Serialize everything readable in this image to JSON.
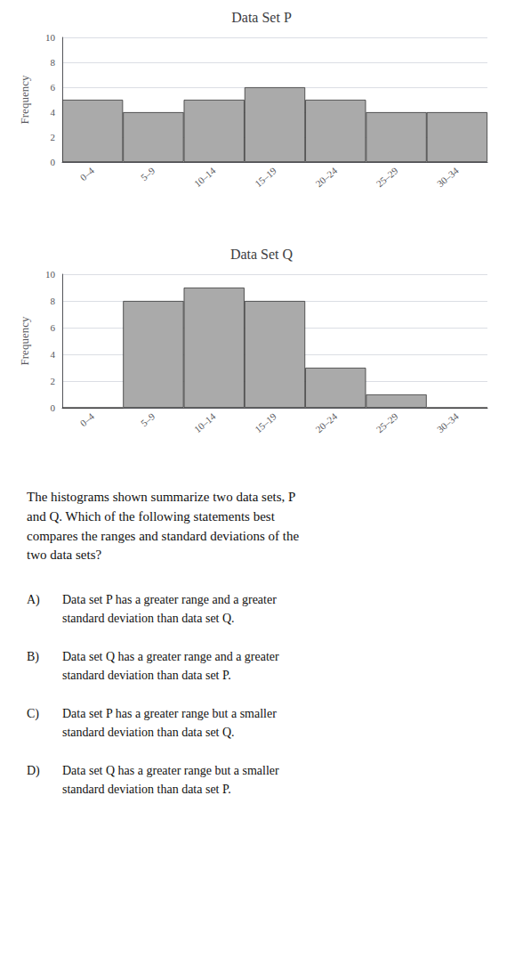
{
  "chart_data": [
    {
      "type": "bar",
      "title": "Data Set P",
      "categories": [
        "0–4",
        "5–9",
        "10–14",
        "15–19",
        "20–24",
        "25–29",
        "30–34"
      ],
      "values": [
        5,
        4,
        5,
        6,
        5,
        4,
        4
      ],
      "color": "#aaaaaa",
      "ylabel": "Frequency",
      "ylim": [
        0,
        10
      ],
      "yticks": [
        0,
        2,
        4,
        6,
        8,
        10
      ],
      "grid": true
    },
    {
      "type": "bar",
      "title": "Data Set Q",
      "categories": [
        "0–4",
        "5–9",
        "10–14",
        "15–19",
        "20–24",
        "25–29",
        "30–34"
      ],
      "values": [
        0,
        8,
        9,
        8,
        3,
        1,
        0
      ],
      "color": "#aaaaaa",
      "ylabel": "Frequency",
      "ylim": [
        0,
        10
      ],
      "yticks": [
        0,
        2,
        4,
        6,
        8,
        10
      ],
      "grid": true
    }
  ],
  "annotations": {
    "question": "The histograms shown summarize two data sets, P\nand Q. Which of the following statements best\ncompares the ranges and standard deviations of the\ntwo data sets?",
    "choices": [
      [
        "A)",
        "Data set P has a greater range and a greater",
        "standard deviation than data set Q."
      ],
      [
        "B)",
        "Data set Q has a greater range and a greater",
        "standard deviation than data set P."
      ],
      [
        "C)",
        "Data set P has a greater range but a smaller",
        "standard deviation than data set Q."
      ],
      [
        "D)",
        "Data set Q has a greater range but a smaller",
        "standard deviation than data set P."
      ]
    ]
  }
}
